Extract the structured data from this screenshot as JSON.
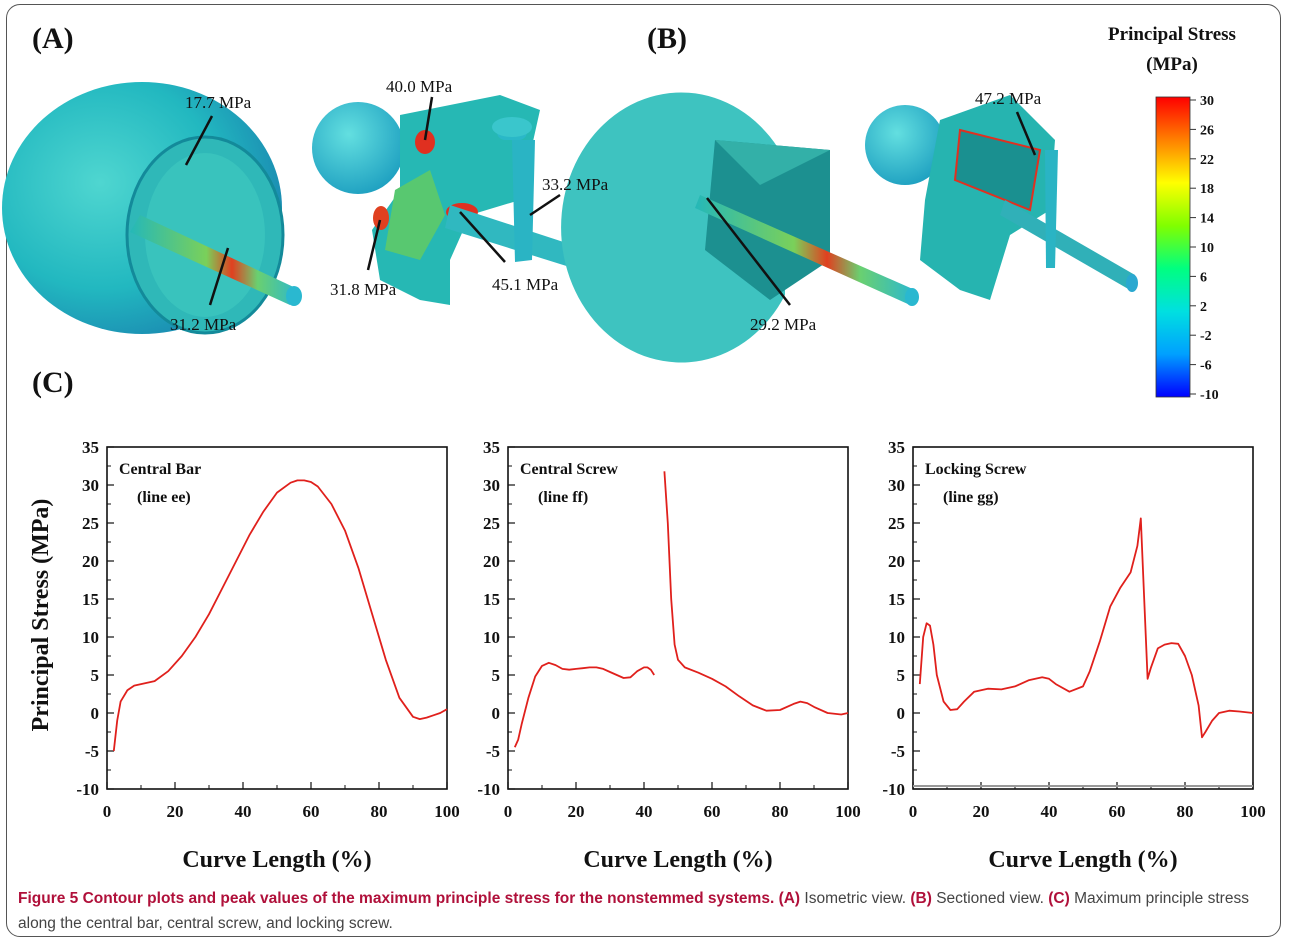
{
  "panels": {
    "a_label": "(A)",
    "b_label": "(B)",
    "c_label": "(C)"
  },
  "callouts": {
    "a1": "17.7 MPa",
    "a2": "31.2 MPa",
    "a3": "40.0 MPa",
    "a4": "33.2 MPa",
    "a5": "31.8 MPa",
    "a6": "45.1 MPa",
    "b1": "47.2 MPa",
    "b2": "29.2 MPa"
  },
  "colorbar": {
    "title_line1": "Principal Stress",
    "title_line2": "(MPa)",
    "ticks": [
      "30",
      "26",
      "22",
      "18",
      "14",
      "10",
      "6",
      "2",
      "-2",
      "-6",
      "-10"
    ],
    "colors": [
      "#0000ff",
      "#00a0ff",
      "#00e0e0",
      "#00ff80",
      "#80ff00",
      "#ffff00",
      "#ff8000",
      "#ff0000"
    ]
  },
  "caption": {
    "figure_label": "Figure 5",
    "title": "Contour plots and peak values of the maximum principle stress for the nonstemmed systems.",
    "a_tag": "(A)",
    "a_text": "Isometric view.",
    "b_tag": "(B)",
    "b_text": "Sectioned view.",
    "c_tag": "(C)",
    "c_text": "Maximum principle stress along the central bar, central screw, and locking screw."
  },
  "chart_data": [
    {
      "type": "line",
      "title_line1": "Central Bar",
      "title_line2": "(line ee)",
      "xlabel": "Curve Length (%)",
      "ylabel": "Principal Stress (MPa)",
      "xlim": [
        0,
        100
      ],
      "ylim": [
        -10,
        35
      ],
      "xticks": [
        0,
        20,
        40,
        60,
        80,
        100
      ],
      "yticks": [
        -10,
        -5,
        0,
        5,
        10,
        15,
        20,
        25,
        30,
        35
      ],
      "color": "#e0201c",
      "x": [
        2,
        3,
        4,
        6,
        8,
        10,
        14,
        18,
        22,
        26,
        30,
        34,
        38,
        42,
        46,
        50,
        54,
        56,
        58,
        60,
        62,
        66,
        70,
        74,
        78,
        82,
        86,
        90,
        92,
        94,
        96,
        98,
        100
      ],
      "y": [
        -5,
        -1,
        1.5,
        3,
        3.6,
        3.8,
        4.2,
        5.5,
        7.5,
        10,
        13,
        16.5,
        20,
        23.5,
        26.5,
        29,
        30.3,
        30.6,
        30.6,
        30.4,
        29.8,
        27.5,
        24,
        19,
        13,
        7,
        2,
        -0.5,
        -0.8,
        -0.6,
        -0.3,
        0,
        0.5
      ]
    },
    {
      "type": "line",
      "title_line1": "Central Screw",
      "title_line2": "(line ff)",
      "xlabel": "Curve Length (%)",
      "xlim": [
        0,
        100
      ],
      "ylim": [
        -10,
        35
      ],
      "xticks": [
        0,
        20,
        40,
        60,
        80,
        100
      ],
      "yticks": [
        -10,
        -5,
        0,
        5,
        10,
        15,
        20,
        25,
        30,
        35
      ],
      "color": "#e0201c",
      "series": [
        {
          "x": [
            2,
            3,
            4,
            6,
            8,
            10,
            12,
            14,
            16,
            18,
            20,
            22,
            24,
            26,
            28,
            30,
            32,
            34,
            36,
            38,
            40,
            41,
            42,
            43
          ],
          "y": [
            -4.5,
            -3.5,
            -1.5,
            2,
            4.8,
            6.2,
            6.6,
            6.3,
            5.8,
            5.7,
            5.8,
            5.9,
            6,
            6,
            5.8,
            5.4,
            5,
            4.6,
            4.7,
            5.5,
            6,
            6,
            5.7,
            5
          ]
        },
        {
          "x": [
            46,
            47,
            48,
            49,
            50,
            52,
            56,
            60,
            64,
            68,
            72,
            76,
            80,
            84,
            86,
            88,
            90,
            94,
            98,
            100
          ],
          "y": [
            31.8,
            25,
            15,
            9,
            7,
            6,
            5.3,
            4.5,
            3.5,
            2.2,
            1,
            0.3,
            0.4,
            1.2,
            1.5,
            1.3,
            0.8,
            0,
            -0.2,
            0
          ]
        }
      ]
    },
    {
      "type": "line",
      "title_line1": "Locking Screw",
      "title_line2": "(line gg)",
      "xlabel": "Curve Length (%)",
      "xlim": [
        0,
        100
      ],
      "ylim": [
        -10,
        35
      ],
      "xticks": [
        0,
        20,
        40,
        60,
        80,
        100
      ],
      "yticks": [
        -10,
        -5,
        0,
        5,
        10,
        15,
        20,
        25,
        30,
        35
      ],
      "color": "#e0201c",
      "x": [
        2,
        3,
        4,
        5,
        6,
        7,
        9,
        11,
        13,
        15,
        18,
        22,
        26,
        30,
        34,
        38,
        40,
        42,
        46,
        50,
        52,
        55,
        58,
        61,
        64,
        66,
        67,
        68,
        69,
        70,
        72,
        74,
        76,
        78,
        80,
        82,
        84,
        85,
        86,
        88,
        90,
        93,
        96,
        100
      ],
      "y": [
        3.8,
        10,
        11.8,
        11.5,
        9,
        5,
        1.5,
        0.4,
        0.5,
        1.5,
        2.8,
        3.2,
        3.1,
        3.5,
        4.3,
        4.7,
        4.5,
        3.8,
        2.8,
        3.5,
        5.5,
        9.5,
        14,
        16.5,
        18.5,
        22,
        25.6,
        15,
        4.5,
        6,
        8.5,
        9,
        9.2,
        9.1,
        7.5,
        5,
        1,
        -3.2,
        -2.5,
        -1,
        0,
        0.3,
        0.2,
        0
      ]
    }
  ]
}
